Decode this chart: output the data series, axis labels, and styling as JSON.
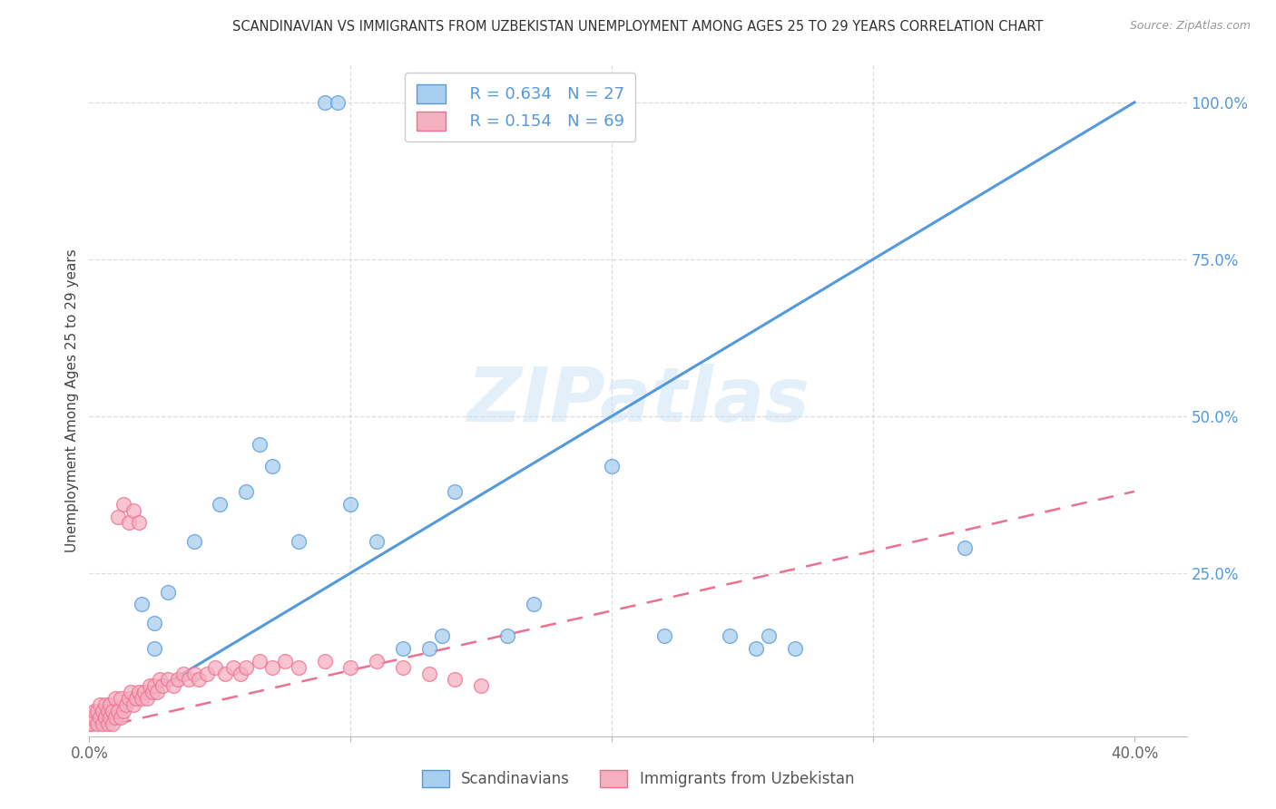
{
  "title": "SCANDINAVIAN VS IMMIGRANTS FROM UZBEKISTAN UNEMPLOYMENT AMONG AGES 25 TO 29 YEARS CORRELATION CHART",
  "source": "Source: ZipAtlas.com",
  "ylabel": "Unemployment Among Ages 25 to 29 years",
  "xlim": [
    0.0,
    0.42
  ],
  "ylim": [
    -0.01,
    1.06
  ],
  "xtick_vals": [
    0.0,
    0.1,
    0.2,
    0.3,
    0.4
  ],
  "xticklabels": [
    "0.0%",
    "",
    "",
    "",
    "40.0%"
  ],
  "ytick_vals": [
    0.0,
    0.25,
    0.5,
    0.75,
    1.0
  ],
  "yticklabels": [
    "",
    "25.0%",
    "50.0%",
    "75.0%",
    "100.0%"
  ],
  "r_scandinavian": 0.634,
  "n_scandinavian": 27,
  "r_uzbekistan": 0.154,
  "n_uzbekistan": 69,
  "color_scandinavian": "#a8cef0",
  "color_uzbekistan": "#f5b0c0",
  "line_color_scandinavian": "#5599dd",
  "line_color_uzbekistan": "#ee7090",
  "watermark": "ZIPatlas",
  "scan_line_x": [
    0.0,
    0.4
  ],
  "scan_line_y": [
    0.0,
    1.0
  ],
  "uz_line_x": [
    0.0,
    0.4
  ],
  "uz_line_y": [
    0.0,
    0.38
  ],
  "scandinavian_x": [
    0.02,
    0.025,
    0.03,
    0.04,
    0.05,
    0.06,
    0.065,
    0.07,
    0.08,
    0.09,
    0.095,
    0.1,
    0.11,
    0.12,
    0.13,
    0.135,
    0.14,
    0.16,
    0.17,
    0.2,
    0.22,
    0.245,
    0.255,
    0.26,
    0.27,
    0.335,
    0.025
  ],
  "scandinavian_y": [
    0.2,
    0.17,
    0.22,
    0.3,
    0.36,
    0.38,
    0.455,
    0.42,
    0.3,
    1.0,
    1.0,
    0.36,
    0.3,
    0.13,
    0.13,
    0.15,
    0.38,
    0.15,
    0.2,
    0.42,
    0.15,
    0.15,
    0.13,
    0.15,
    0.13,
    0.29,
    0.13
  ],
  "uzbekistan_x": [
    0.0,
    0.001,
    0.001,
    0.002,
    0.002,
    0.003,
    0.003,
    0.004,
    0.004,
    0.005,
    0.005,
    0.006,
    0.006,
    0.007,
    0.007,
    0.008,
    0.008,
    0.009,
    0.009,
    0.01,
    0.01,
    0.011,
    0.012,
    0.012,
    0.013,
    0.014,
    0.015,
    0.016,
    0.017,
    0.018,
    0.019,
    0.02,
    0.021,
    0.022,
    0.023,
    0.024,
    0.025,
    0.026,
    0.027,
    0.028,
    0.03,
    0.032,
    0.034,
    0.036,
    0.038,
    0.04,
    0.042,
    0.045,
    0.048,
    0.052,
    0.055,
    0.058,
    0.06,
    0.065,
    0.07,
    0.075,
    0.08,
    0.09,
    0.1,
    0.11,
    0.12,
    0.13,
    0.14,
    0.15,
    0.011,
    0.013,
    0.015,
    0.017,
    0.019
  ],
  "uzbekistan_y": [
    0.01,
    0.01,
    0.02,
    0.02,
    0.03,
    0.01,
    0.03,
    0.02,
    0.04,
    0.01,
    0.03,
    0.02,
    0.04,
    0.01,
    0.03,
    0.02,
    0.04,
    0.01,
    0.03,
    0.02,
    0.05,
    0.03,
    0.02,
    0.05,
    0.03,
    0.04,
    0.05,
    0.06,
    0.04,
    0.05,
    0.06,
    0.05,
    0.06,
    0.05,
    0.07,
    0.06,
    0.07,
    0.06,
    0.08,
    0.07,
    0.08,
    0.07,
    0.08,
    0.09,
    0.08,
    0.09,
    0.08,
    0.09,
    0.1,
    0.09,
    0.1,
    0.09,
    0.1,
    0.11,
    0.1,
    0.11,
    0.1,
    0.11,
    0.1,
    0.11,
    0.1,
    0.09,
    0.08,
    0.07,
    0.34,
    0.36,
    0.33,
    0.35,
    0.33
  ],
  "background_color": "#ffffff",
  "grid_color": "#dddddd"
}
